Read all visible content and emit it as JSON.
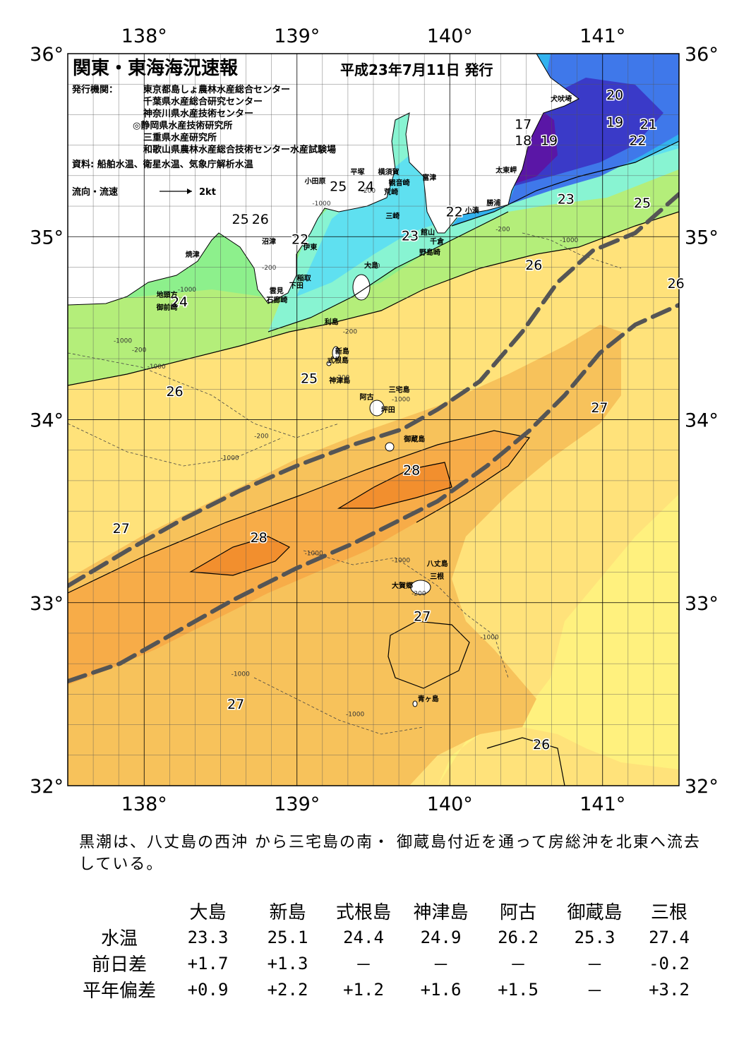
{
  "title": "関東・東海海況速報",
  "issue_date": "平成23年7月11日 発行",
  "publisher": {
    "label": "発行機関：",
    "orgs": [
      "東京都島しょ農林水産総合センター",
      "千葉県水産総合研究センター",
      "神奈川県水産技術センター",
      "◎静岡県水産技術研究所",
      "三重県水産研究所",
      "和歌山県農林水産総合技術センター水産試験場"
    ]
  },
  "sources": "資料: 船舶水温、衛星水温、気象庁解析水温",
  "flow_legend": {
    "label": "流向・流速",
    "speed": "2kt"
  },
  "axes": {
    "lon_ticks": [
      "138°",
      "139°",
      "140°",
      "141°"
    ],
    "lat_ticks": [
      "36°",
      "35°",
      "34°",
      "33°",
      "32°"
    ],
    "lon_range": [
      137.5,
      141.5
    ],
    "lat_range": [
      32,
      36
    ]
  },
  "colors": {
    "t18": "#5a16a6",
    "t19": "#3a3ac8",
    "t20": "#3f78ea",
    "t21": "#32b2ee",
    "t22": "#5fe0f0",
    "t23": "#88f4d2",
    "t24": "#8df08c",
    "t25": "#b4ee7a",
    "t26": "#ffe27a",
    "t265": "#fff17e",
    "t27": "#f7c25b",
    "t275": "#f7ac48",
    "t28": "#f28f2e",
    "land": "#ffffff",
    "kuroshio": "#555555"
  },
  "isotherm_labels": [
    {
      "text": "20",
      "lon": 141.08,
      "lat": 35.75
    },
    {
      "text": "19",
      "lon": 141.08,
      "lat": 35.6
    },
    {
      "text": "21",
      "lon": 141.3,
      "lat": 35.59
    },
    {
      "text": "22",
      "lon": 141.23,
      "lat": 35.5
    },
    {
      "text": "17",
      "lon": 140.48,
      "lat": 35.59
    },
    {
      "text": "18",
      "lon": 140.48,
      "lat": 35.5
    },
    {
      "text": "19",
      "lon": 140.65,
      "lat": 35.5
    },
    {
      "text": "23",
      "lon": 140.76,
      "lat": 35.18
    },
    {
      "text": "25",
      "lon": 141.26,
      "lat": 35.16
    },
    {
      "text": "22",
      "lon": 140.03,
      "lat": 35.11
    },
    {
      "text": "23",
      "lon": 139.74,
      "lat": 34.98
    },
    {
      "text": "25",
      "lon": 139.27,
      "lat": 35.25
    },
    {
      "text": "24",
      "lon": 139.45,
      "lat": 35.25
    },
    {
      "text": "25",
      "lon": 138.63,
      "lat": 35.07
    },
    {
      "text": "26",
      "lon": 138.76,
      "lat": 35.07
    },
    {
      "text": "22",
      "lon": 139.02,
      "lat": 34.96
    },
    {
      "text": "24",
      "lon": 138.23,
      "lat": 34.62
    },
    {
      "text": "26",
      "lon": 140.55,
      "lat": 34.82
    },
    {
      "text": "26",
      "lon": 141.48,
      "lat": 34.72
    },
    {
      "text": "25",
      "lon": 139.08,
      "lat": 34.2
    },
    {
      "text": "26",
      "lon": 138.2,
      "lat": 34.13
    },
    {
      "text": "27",
      "lon": 140.98,
      "lat": 34.04
    },
    {
      "text": "28",
      "lon": 139.75,
      "lat": 33.7
    },
    {
      "text": "27",
      "lon": 137.85,
      "lat": 33.38
    },
    {
      "text": "28",
      "lon": 138.75,
      "lat": 33.33
    },
    {
      "text": "27",
      "lon": 139.82,
      "lat": 32.9
    },
    {
      "text": "27",
      "lon": 138.6,
      "lat": 32.42
    },
    {
      "text": "26",
      "lon": 140.6,
      "lat": 32.2
    }
  ],
  "place_names": [
    {
      "text": "犬吠埼",
      "lon": 140.66,
      "lat": 35.74
    },
    {
      "text": "太東岬",
      "lon": 140.3,
      "lat": 35.35
    },
    {
      "text": "勝浦",
      "lon": 140.24,
      "lat": 35.17
    },
    {
      "text": "小湊",
      "lon": 140.1,
      "lat": 35.13
    },
    {
      "text": "富津",
      "lon": 139.82,
      "lat": 35.31
    },
    {
      "text": "横須賀",
      "lon": 139.53,
      "lat": 35.34
    },
    {
      "text": "観音崎",
      "lon": 139.6,
      "lat": 35.28
    },
    {
      "text": "荒崎",
      "lon": 139.57,
      "lat": 35.23
    },
    {
      "text": "平塚",
      "lon": 139.35,
      "lat": 35.34
    },
    {
      "text": "小田原",
      "lon": 139.05,
      "lat": 35.29
    },
    {
      "text": "三崎",
      "lon": 139.58,
      "lat": 35.1
    },
    {
      "text": "館山",
      "lon": 139.81,
      "lat": 35.01
    },
    {
      "text": "千倉",
      "lon": 139.87,
      "lat": 34.96
    },
    {
      "text": "野島崎",
      "lon": 139.8,
      "lat": 34.9
    },
    {
      "text": "大島",
      "lon": 139.44,
      "lat": 34.83
    },
    {
      "text": "沼津",
      "lon": 138.77,
      "lat": 34.96
    },
    {
      "text": "焼津",
      "lon": 138.27,
      "lat": 34.89
    },
    {
      "text": "伊東",
      "lon": 139.04,
      "lat": 34.93
    },
    {
      "text": "稲取",
      "lon": 139.0,
      "lat": 34.76
    },
    {
      "text": "下田",
      "lon": 138.95,
      "lat": 34.72
    },
    {
      "text": "雲見",
      "lon": 138.82,
      "lat": 34.69
    },
    {
      "text": "石廊崎",
      "lon": 138.8,
      "lat": 34.64
    },
    {
      "text": "地頭方",
      "lon": 138.08,
      "lat": 34.67
    },
    {
      "text": "御前崎",
      "lon": 138.08,
      "lat": 34.6
    },
    {
      "text": "利島",
      "lon": 139.18,
      "lat": 34.52
    },
    {
      "text": "新島",
      "lon": 139.25,
      "lat": 34.36
    },
    {
      "text": "式根島",
      "lon": 139.2,
      "lat": 34.31
    },
    {
      "text": "神津島",
      "lon": 139.21,
      "lat": 34.2
    },
    {
      "text": "三宅島",
      "lon": 139.6,
      "lat": 34.15
    },
    {
      "text": "阿古",
      "lon": 139.41,
      "lat": 34.11
    },
    {
      "text": "坪田",
      "lon": 139.55,
      "lat": 34.04
    },
    {
      "text": "御蔵島",
      "lon": 139.7,
      "lat": 33.88
    },
    {
      "text": "八丈島",
      "lon": 139.85,
      "lat": 33.2
    },
    {
      "text": "三根",
      "lon": 139.87,
      "lat": 33.13
    },
    {
      "text": "大賀郷",
      "lon": 139.62,
      "lat": 33.08
    },
    {
      "text": "青ヶ島",
      "lon": 139.79,
      "lat": 32.46
    }
  ],
  "depth_labels": [
    {
      "text": "-200",
      "lon": 139.42,
      "lat": 35.24
    },
    {
      "text": "-1000",
      "lon": 139.1,
      "lat": 35.17
    },
    {
      "text": "-200",
      "lon": 138.77,
      "lat": 34.82
    },
    {
      "text": "-1000",
      "lon": 138.22,
      "lat": 34.7
    },
    {
      "text": "-1000",
      "lon": 137.8,
      "lat": 34.42
    },
    {
      "text": "-200",
      "lon": 137.92,
      "lat": 34.37
    },
    {
      "text": "-1000",
      "lon": 138.02,
      "lat": 34.28
    },
    {
      "text": "-200",
      "lon": 138.72,
      "lat": 33.9
    },
    {
      "text": "-1000",
      "lon": 138.5,
      "lat": 33.78
    },
    {
      "text": "-200",
      "lon": 139.45,
      "lat": 34.83
    },
    {
      "text": "-200",
      "lon": 139.3,
      "lat": 34.47
    },
    {
      "text": "-200",
      "lon": 139.25,
      "lat": 34.22
    },
    {
      "text": "-1000",
      "lon": 139.62,
      "lat": 34.1
    },
    {
      "text": "-1000",
      "lon": 140.72,
      "lat": 34.97
    },
    {
      "text": "-200",
      "lon": 140.3,
      "lat": 35.03
    },
    {
      "text": "-1000",
      "lon": 139.05,
      "lat": 33.26
    },
    {
      "text": "-1000",
      "lon": 139.62,
      "lat": 33.22
    },
    {
      "text": "-200",
      "lon": 139.75,
      "lat": 33.04
    },
    {
      "text": "-1000",
      "lon": 140.2,
      "lat": 32.8
    },
    {
      "text": "-1000",
      "lon": 138.57,
      "lat": 32.6
    },
    {
      "text": "-1000",
      "lon": 139.32,
      "lat": 32.38
    }
  ],
  "summary_text": "黒潮は、八丈島の西沖 から三宅島の南・ 御蔵島付近を通って房総沖を北東へ流去している。",
  "stats": {
    "stations": [
      "大島",
      "新島",
      "式根島",
      "神津島",
      "阿古",
      "御蔵島",
      "三根"
    ],
    "rows": [
      {
        "label": "水温",
        "values": [
          "23.3",
          "25.1",
          "24.4",
          "24.9",
          "26.2",
          "25.3",
          "27.4"
        ]
      },
      {
        "label": "前日差",
        "values": [
          "+1.7",
          "+1.3",
          "－",
          "－",
          "－",
          "－",
          "-0.2"
        ]
      },
      {
        "label": "平年偏差",
        "values": [
          "+0.9",
          "+2.2",
          "+1.2",
          "+1.6",
          "+1.5",
          "－",
          "+3.2"
        ]
      }
    ]
  }
}
